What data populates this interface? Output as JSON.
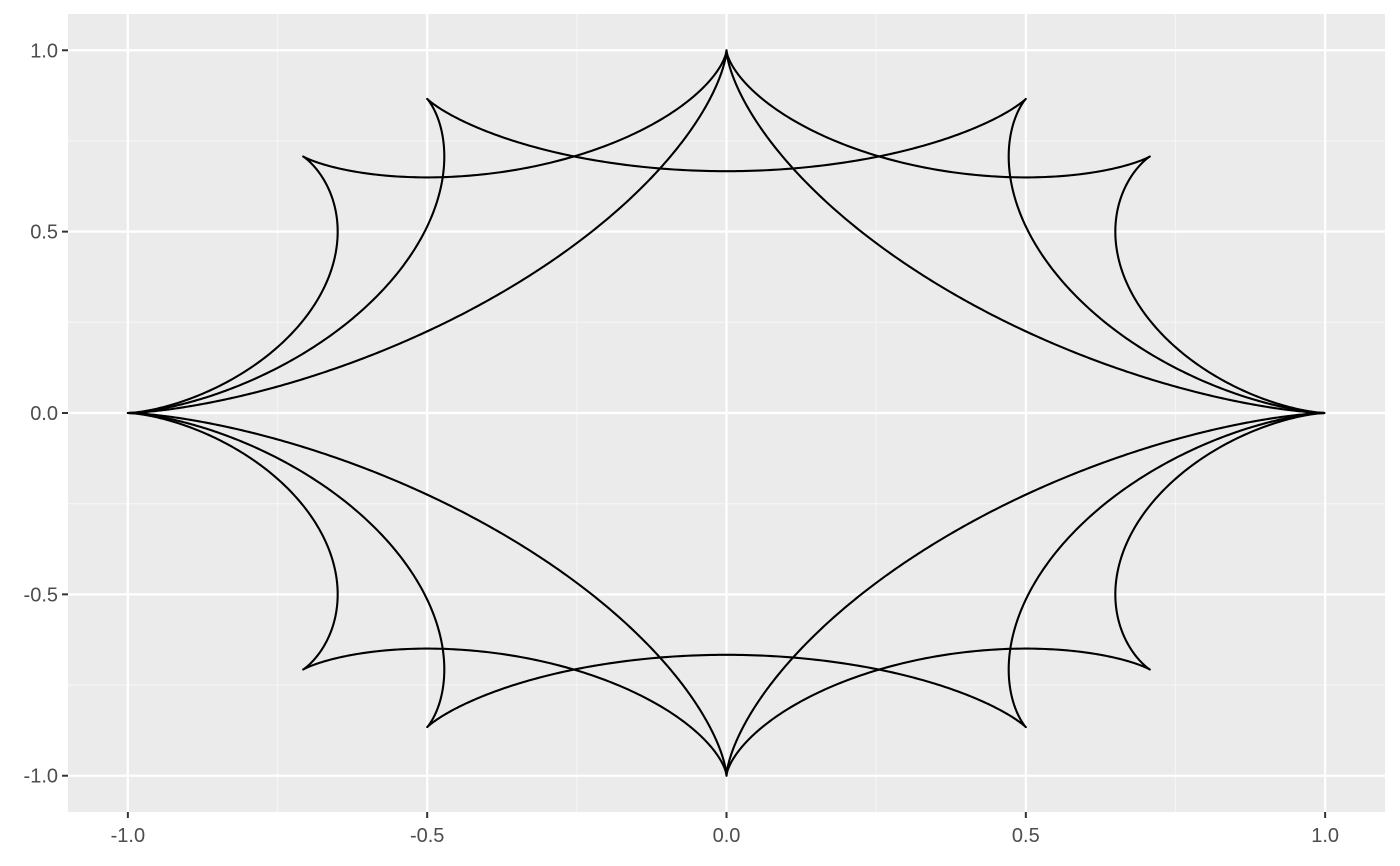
{
  "chart_data": {
    "type": "line",
    "title": "",
    "xlabel": "",
    "ylabel": "",
    "xlim": [
      -1.1,
      1.1
    ],
    "ylim": [
      -1.1,
      1.1
    ],
    "grid": true,
    "legend": "none",
    "x_ticks": [
      -1.0,
      -0.5,
      0.0,
      0.5,
      1.0
    ],
    "x_tick_labels": [
      "-1.0",
      "-0.5",
      "0.0",
      "0.5",
      "1.0"
    ],
    "y_ticks": [
      -1.0,
      -0.5,
      0.0,
      0.5,
      1.0
    ],
    "y_tick_labels": [
      "-1.0",
      "-0.5",
      "0.0",
      "0.5",
      "1.0"
    ],
    "series": [
      {
        "shape": "hypocycloid",
        "cusps": 6,
        "rotation_deg": 0
      },
      {
        "shape": "hypocycloid",
        "cusps": 8,
        "rotation_deg": 0
      },
      {
        "shape": "hypocycloid",
        "cusps": 4,
        "rotation_deg": 0
      }
    ],
    "colors": {
      "panel_background": "#ebebeb",
      "grid_major": "#ffffff",
      "grid_minor": "#f5f5f5",
      "line": "#000000",
      "tick_text": "#4d4d4d",
      "tick_mark": "#333333"
    }
  }
}
